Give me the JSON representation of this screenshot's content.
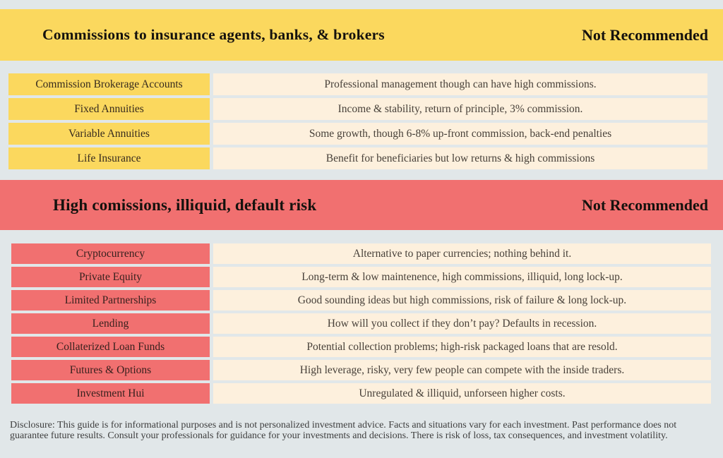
{
  "colors": {
    "bg": "#e1e7e9",
    "yellow": "#fbd85e",
    "red": "#f17070",
    "cream": "#fdf0dd"
  },
  "sections": [
    {
      "header": {
        "title": "Commissions to insurance agents, banks, & brokers",
        "badge": "Not Recommended"
      },
      "rows": [
        {
          "label": "Commission Brokerage Accounts",
          "description": "Professional management though can have high commissions."
        },
        {
          "label": "Fixed Annuities",
          "description": "Income & stability, return of principle, 3% commission."
        },
        {
          "label": "Variable Annuities",
          "description": "Some growth, though 6-8% up-front commission, back-end penalties"
        },
        {
          "label": "Life Insurance",
          "description": "Benefit for beneficiaries but low returns & high commissions"
        }
      ]
    },
    {
      "header": {
        "title": "High comissions, illiquid, default risk",
        "badge": "Not Recommended"
      },
      "rows": [
        {
          "label": "Cryptocurrency",
          "description": "Alternative to paper currencies; nothing behind it."
        },
        {
          "label": "Private Equity",
          "description": "Long-term & low maintenence, high commissions, illiquid, long lock-up."
        },
        {
          "label": "Limited Partnerships",
          "description": "Good sounding ideas but high commissions, risk of failure & long lock-up."
        },
        {
          "label": "Lending",
          "description": "How will you collect if they don’t pay? Defaults in recession."
        },
        {
          "label": "Collaterized Loan Funds",
          "description": "Potential collection problems; high-risk packaged loans that are resold."
        },
        {
          "label": "Futures & Options",
          "description": "High leverage, risky, very few people can compete with the inside traders."
        },
        {
          "label": "Investment Hui",
          "description": "Unregulated & illiquid, unforseen higher costs."
        }
      ]
    }
  ],
  "disclosure": "Disclosure: This guide is for informational purposes and is not personalized investment advice. Facts and situations vary for each investment. Past performance does not guarantee future results. Consult your professionals for guidance for your investments and decisions. There is risk of loss, tax consequences, and investment volatility."
}
